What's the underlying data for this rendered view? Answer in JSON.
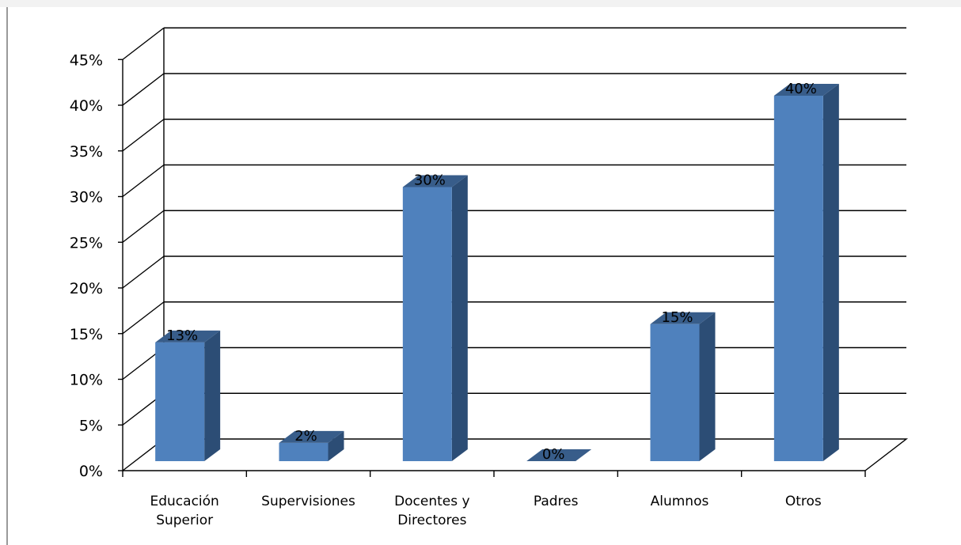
{
  "chart_data": {
    "type": "bar",
    "categories": [
      [
        "Educación",
        "Superior"
      ],
      [
        "Supervisiones"
      ],
      [
        "Docentes y",
        "Directores"
      ],
      [
        "Padres"
      ],
      [
        "Alumnos"
      ],
      [
        "Otros"
      ]
    ],
    "values": [
      13,
      2,
      30,
      0,
      15,
      40
    ],
    "data_labels": [
      "13%",
      "2%",
      "30%",
      "0%",
      "15%",
      "40%"
    ],
    "y_ticks": [
      "0%",
      "5%",
      "10%",
      "15%",
      "20%",
      "25%",
      "30%",
      "35%",
      "40%",
      "45%"
    ],
    "ylim": [
      0,
      45
    ],
    "grid": true,
    "style": "3d-column",
    "colors": {
      "bar_front": "#4f81bd",
      "bar_side": "#2c4d75",
      "bar_top": "#385d8a",
      "grid": "#000000",
      "wall": "#ffffff"
    }
  }
}
